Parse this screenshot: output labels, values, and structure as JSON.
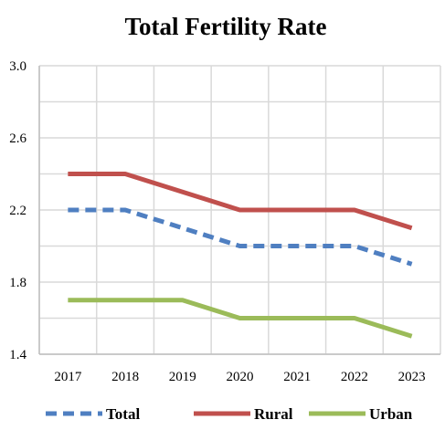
{
  "chart_data": {
    "type": "line",
    "title": "Total Fertility Rate",
    "xlabel": "",
    "ylabel": "",
    "x": [
      "2017",
      "2018",
      "2019",
      "2020",
      "2021",
      "2022",
      "2023"
    ],
    "ylim": [
      1.4,
      3.0
    ],
    "yticks": [
      "1.4",
      "1.8",
      "2.2",
      "2.6",
      "3.0"
    ],
    "grid": true,
    "legend": "bottom",
    "series": [
      {
        "name": "Total",
        "values": [
          2.2,
          2.2,
          2.1,
          2.0,
          2.0,
          2.0,
          1.9
        ],
        "color": "#4f7fc1",
        "dash": "dashed"
      },
      {
        "name": "Rural",
        "values": [
          2.4,
          2.4,
          2.3,
          2.2,
          2.2,
          2.2,
          2.1
        ],
        "color": "#c0504d",
        "dash": "solid"
      },
      {
        "name": "Urban",
        "values": [
          1.7,
          1.7,
          1.7,
          1.6,
          1.6,
          1.6,
          1.5
        ],
        "color": "#9bbb59",
        "dash": "solid"
      }
    ]
  }
}
